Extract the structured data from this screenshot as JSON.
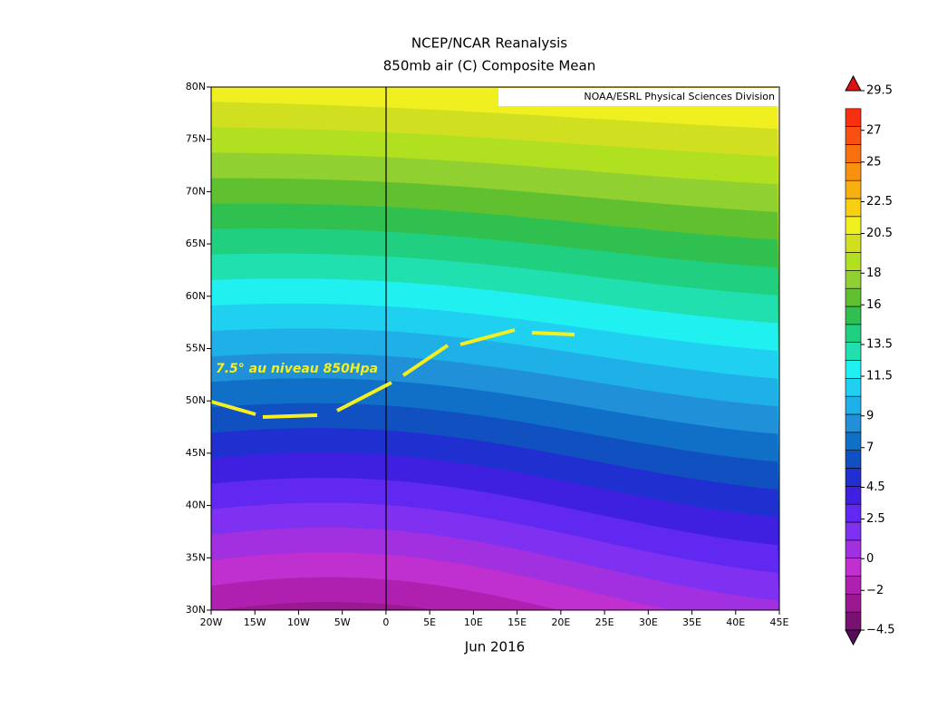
{
  "map": {
    "title": [
      "NCEP/NCAR Reanalysis",
      "850mb air (C) Composite Mean"
    ],
    "credit": "NOAA/ESRL Physical Sciences Division",
    "annotation": "7.5° au niveau 850Hpa",
    "xlabel": "Jun 2016",
    "xlim": [
      -20,
      45
    ],
    "ylim": [
      30,
      80
    ],
    "xticks": [
      {
        "value": -20,
        "label": "20W"
      },
      {
        "value": -15,
        "label": "15W"
      },
      {
        "value": -10,
        "label": "10W"
      },
      {
        "value": -5,
        "label": "5W"
      },
      0,
      {
        "value": 5,
        "label": "5E"
      },
      {
        "value": 10,
        "label": "10E"
      },
      {
        "value": 15,
        "label": "15E"
      },
      {
        "value": 20,
        "label": "20E"
      },
      {
        "value": 25,
        "label": "25E"
      },
      {
        "value": 30,
        "label": "30E"
      },
      {
        "value": 35,
        "label": "35E"
      },
      {
        "value": 40,
        "label": "40E"
      },
      {
        "value": 45,
        "label": "45E"
      }
    ],
    "yticks": [
      {
        "value": 30,
        "label": "30N"
      },
      {
        "value": 35,
        "label": "35N"
      },
      {
        "value": 40,
        "label": "40N"
      },
      {
        "value": 45,
        "label": "45N"
      },
      {
        "value": 50,
        "label": "50N"
      },
      {
        "value": 55,
        "label": "55N"
      },
      {
        "value": 60,
        "label": "60N"
      },
      {
        "value": 65,
        "label": "65N"
      },
      {
        "value": 70,
        "label": "70N"
      },
      {
        "value": 75,
        "label": "75N"
      },
      {
        "value": 80,
        "label": "80N"
      }
    ],
    "colorbar": {
      "labels": [
        {
          "value": -4.5,
          "label": "−4.5"
        },
        {
          "value": -2,
          "label": "−2"
        },
        0,
        2.5,
        4.5,
        7,
        9,
        11.5,
        13.5,
        16,
        18,
        20.5,
        22.5,
        25,
        27,
        29.5
      ],
      "colors": [
        "#5a0a5a",
        "#7a1070",
        "#9a1890",
        "#b020b0",
        "#c030d0",
        "#a030e0",
        "#8030f0",
        "#6028f0",
        "#4020e0",
        "#2030d0",
        "#1050c0",
        "#1070c8",
        "#2090d8",
        "#20b0e8",
        "#20d0f0",
        "#20f0f0",
        "#20e0b0",
        "#20d080",
        "#30c050",
        "#60c030",
        "#90d030",
        "#b0e020",
        "#d0e020",
        "#f0f020",
        "#f8d010",
        "#f8b010",
        "#f89010",
        "#f87010",
        "#f85010",
        "#f83010",
        "#e01010"
      ]
    }
  }
}
